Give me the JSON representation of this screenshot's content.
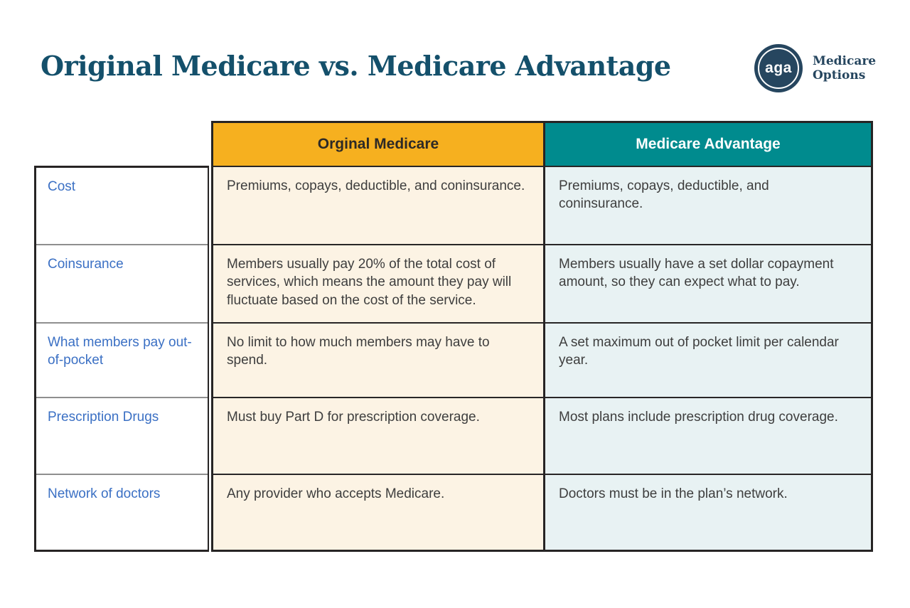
{
  "header": {
    "title": "Original Medicare vs. Medicare Advantage",
    "logo": {
      "monogram": "aga",
      "line1": "Medicare",
      "line2": "Options"
    }
  },
  "table": {
    "columns": [
      {
        "label": "Orginal Medicare"
      },
      {
        "label": "Medicare Advantage"
      }
    ],
    "rows": [
      {
        "label": "Cost",
        "original": "Premiums, copays, deductible, and coninsurance.",
        "advantage": "Premiums, copays, deductible, and coninsurance."
      },
      {
        "label": "Coinsurance",
        "original": "Members usually pay 20% of the total cost of services, which means the amount they pay will fluctuate based on the cost of the service.",
        "advantage": "Members usually have a set dollar copayment amount, so they can expect what to pay."
      },
      {
        "label": "What members pay out-of-pocket",
        "original": "No limit to how much members may have to spend.",
        "advantage": "A set maximum out of pocket limit per calendar year."
      },
      {
        "label": "Prescription Drugs",
        "original": "Must buy Part D for prescription coverage.",
        "advantage": "Most plans include prescription drug coverage."
      },
      {
        "label": "Network of doctors",
        "original": "Any provider who accepts Medicare.",
        "advantage": "Doctors must be in the plan’s network."
      }
    ]
  },
  "colors": {
    "title_navy": "#14506b",
    "logo_navy": "#26465f",
    "header_yellow": "#f6b01f",
    "header_teal": "#008b8e",
    "cell_cream": "#fcf3e4",
    "cell_light_teal": "#e8f2f3",
    "label_blue": "#3b70c4",
    "body_text": "#3e3e3e",
    "border_dark": "#262424"
  }
}
